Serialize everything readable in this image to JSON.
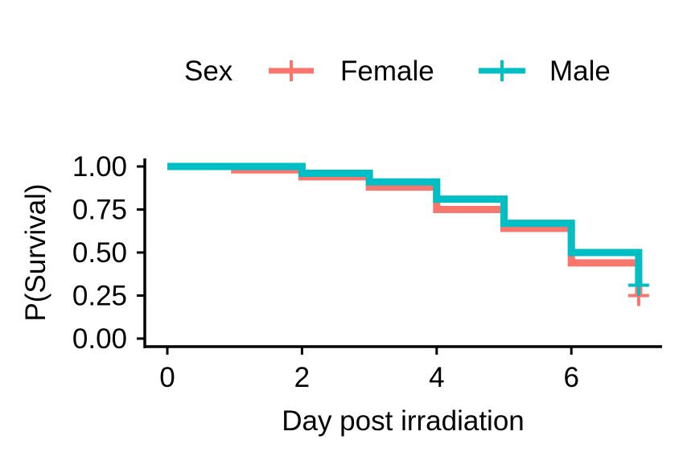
{
  "chart_data": {
    "type": "line",
    "subtype": "kaplan-meier-step",
    "xlabel": "Day post irradiation",
    "ylabel": "P(Survival)",
    "xlim": [
      -0.35,
      7.35
    ],
    "ylim": [
      -0.05,
      1.05
    ],
    "x_ticks": [
      0,
      2,
      4,
      6
    ],
    "x_tick_labels": [
      "0",
      "2",
      "4",
      "6"
    ],
    "y_ticks": [
      0,
      0.25,
      0.5,
      0.75,
      1.0
    ],
    "y_tick_labels": [
      "0.00",
      "0.25",
      "0.50",
      "0.75",
      "1.00"
    ],
    "legend": {
      "title": "Sex",
      "position": "top",
      "entries": [
        "Female",
        "Male"
      ]
    },
    "grid": false,
    "series": [
      {
        "name": "Female",
        "color": "#F8766D",
        "steps": [
          {
            "x": 0,
            "y": 1.0
          },
          {
            "x": 1,
            "y": 0.98
          },
          {
            "x": 2,
            "y": 0.94
          },
          {
            "x": 3,
            "y": 0.88
          },
          {
            "x": 4,
            "y": 0.75
          },
          {
            "x": 5,
            "y": 0.64
          },
          {
            "x": 6,
            "y": 0.44
          },
          {
            "x": 7,
            "y": 0.25
          }
        ],
        "censor": [
          {
            "x": 7,
            "y": 0.25
          }
        ]
      },
      {
        "name": "Male",
        "color": "#00BFC4",
        "steps": [
          {
            "x": 0,
            "y": 1.0
          },
          {
            "x": 2,
            "y": 0.96
          },
          {
            "x": 3,
            "y": 0.91
          },
          {
            "x": 4,
            "y": 0.81
          },
          {
            "x": 5,
            "y": 0.67
          },
          {
            "x": 6,
            "y": 0.5
          },
          {
            "x": 7,
            "y": 0.31
          }
        ],
        "censor": [
          {
            "x": 7,
            "y": 0.31
          }
        ]
      }
    ]
  }
}
